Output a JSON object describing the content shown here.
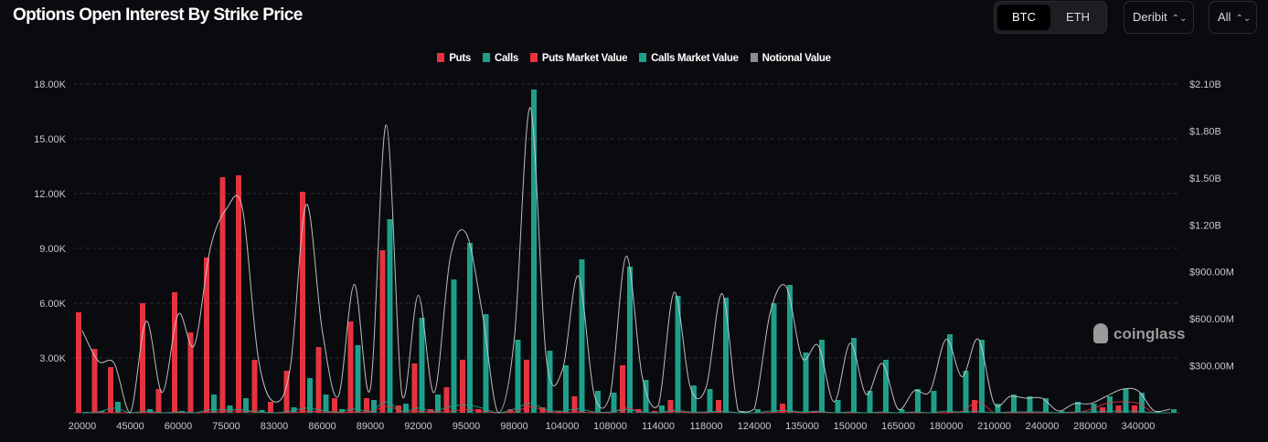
{
  "header": {
    "title": "Options Open Interest By Strike Price"
  },
  "controls": {
    "coins": [
      {
        "label": "BTC",
        "active": true
      },
      {
        "label": "ETH",
        "active": false
      }
    ],
    "exchange": "Deribit",
    "expiry": "All"
  },
  "watermark": "coinglass",
  "chart_data": {
    "type": "bar",
    "title": "Options Open Interest By Strike Price",
    "legend_position": "top",
    "grid": true,
    "legend": [
      {
        "name": "Puts",
        "color": "#e5333f"
      },
      {
        "name": "Calls",
        "color": "#1f9e89"
      },
      {
        "name": "Puts Market Value",
        "color": "#e5333f"
      },
      {
        "name": "Calls Market Value",
        "color": "#1f9e89"
      },
      {
        "name": "Notional Value",
        "color": "#8c8c8c"
      }
    ],
    "x_tick_labels": [
      "20000",
      "45000",
      "60000",
      "75000",
      "83000",
      "86000",
      "89000",
      "92000",
      "95000",
      "98000",
      "104000",
      "108000",
      "114000",
      "118000",
      "124000",
      "135000",
      "150000",
      "165000",
      "180000",
      "210000",
      "240000",
      "280000",
      "340000"
    ],
    "x_tick_every": 3,
    "left_axis": {
      "ylim": [
        0,
        18000
      ],
      "ticks": [
        "3.00K",
        "6.00K",
        "9.00K",
        "12.00K",
        "15.00K",
        "18.00K"
      ]
    },
    "right_axis": {
      "ylim": [
        0,
        2100
      ],
      "unit": "$M",
      "ticks": [
        "$300.00M",
        "$600.00M",
        "$900.00M",
        "$1.20B",
        "$1.50B",
        "$1.80B",
        "$2.10B"
      ]
    },
    "series": [
      {
        "name": "Puts",
        "axis": "left",
        "kind": "bar",
        "color": "#e5333f",
        "values": [
          5500,
          3500,
          2500,
          0,
          6000,
          1300,
          6600,
          4400,
          8500,
          12900,
          13000,
          2900,
          600,
          2300,
          12100,
          3600,
          800,
          5000,
          800,
          8900,
          400,
          2700,
          200,
          1400,
          2900,
          200,
          0,
          200,
          2900,
          300,
          100,
          900,
          0,
          0,
          2600,
          200,
          100,
          700,
          0,
          0,
          700,
          0,
          0,
          0,
          500,
          0,
          100,
          0,
          0,
          0,
          0,
          0,
          0,
          0,
          0,
          0,
          700,
          0,
          0,
          0,
          0,
          0,
          0,
          0,
          300,
          400,
          400,
          0,
          0
        ]
      },
      {
        "name": "Calls",
        "axis": "left",
        "kind": "bar",
        "color": "#1f9e89",
        "values": [
          50,
          100,
          600,
          0,
          200,
          0,
          100,
          0,
          1000,
          400,
          800,
          150,
          0,
          300,
          1900,
          1000,
          200,
          3700,
          700,
          10600,
          500,
          5200,
          1000,
          7300,
          9300,
          5400,
          0,
          4000,
          17700,
          3400,
          2600,
          8400,
          1200,
          1100,
          8000,
          1800,
          400,
          6400,
          1500,
          1300,
          6300,
          100,
          200,
          6000,
          7000,
          3300,
          4000,
          700,
          4100,
          1200,
          2900,
          200,
          1300,
          1200,
          4300,
          2300,
          4000,
          500,
          1000,
          900,
          800,
          100,
          600,
          500,
          900,
          1300,
          1100,
          100,
          200
        ]
      },
      {
        "name": "Puts Market Value",
        "axis": "right",
        "kind": "line",
        "color": "#e5333f",
        "values": [
          0,
          0,
          0,
          0,
          0,
          0,
          0,
          0,
          5,
          10,
          10,
          5,
          0,
          0,
          10,
          5,
          0,
          5,
          5,
          40,
          10,
          10,
          5,
          10,
          20,
          10,
          0,
          5,
          40,
          10,
          0,
          5,
          0,
          0,
          30,
          5,
          0,
          10,
          0,
          0,
          10,
          0,
          0,
          0,
          10,
          0,
          5,
          0,
          0,
          0,
          0,
          0,
          0,
          0,
          0,
          10,
          70,
          0,
          0,
          0,
          0,
          0,
          0,
          20,
          60,
          70,
          60,
          0,
          0
        ]
      },
      {
        "name": "Calls Market Value",
        "axis": "right",
        "kind": "line",
        "color": "#1f9e89",
        "values": [
          0,
          5,
          30,
          0,
          10,
          0,
          5,
          0,
          20,
          20,
          20,
          5,
          0,
          10,
          30,
          15,
          5,
          25,
          10,
          70,
          10,
          30,
          10,
          40,
          50,
          30,
          0,
          25,
          60,
          20,
          10,
          25,
          5,
          5,
          20,
          5,
          0,
          15,
          5,
          5,
          10,
          0,
          0,
          10,
          15,
          5,
          10,
          0,
          5,
          0,
          5,
          0,
          5,
          0,
          10,
          5,
          10,
          0,
          5,
          5,
          5,
          0,
          5,
          5,
          10,
          10,
          10,
          0,
          0
        ]
      },
      {
        "name": "Notional Value",
        "axis": "right",
        "kind": "line",
        "color": "#d0d0d0",
        "values": [
          525,
          330,
          315,
          0,
          585,
          130,
          630,
          430,
          1050,
          1300,
          1310,
          350,
          70,
          290,
          1330,
          525,
          105,
          820,
          150,
          1840,
          105,
          750,
          130,
          990,
          1145,
          640,
          0,
          470,
          1950,
          350,
          270,
          875,
          115,
          115,
          1000,
          230,
          47,
          770,
          165,
          165,
          760,
          12,
          23,
          640,
          805,
          350,
          430,
          70,
          445,
          117,
          315,
          23,
          140,
          140,
          470,
          230,
          470,
          58,
          105,
          93,
          93,
          12,
          58,
          58,
          105,
          150,
          140,
          12,
          23
        ]
      }
    ]
  }
}
